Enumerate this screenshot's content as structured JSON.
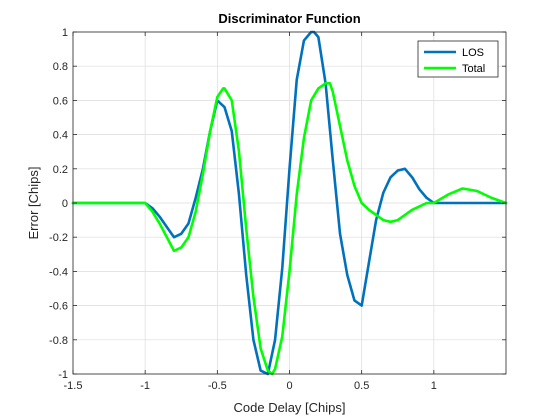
{
  "chart_data": {
    "type": "line",
    "title": "Discriminator Function",
    "xlabel": "Code Delay [Chips]",
    "ylabel": "Error [Chips]",
    "xlim": [
      -1.5,
      1.5
    ],
    "ylim": [
      -1,
      1
    ],
    "xticks": [
      -1.5,
      -1,
      -0.5,
      0,
      0.5,
      1
    ],
    "xtick_labels": [
      "-1.5",
      "-1",
      "-0.5",
      "0",
      "0.5",
      "1"
    ],
    "yticks": [
      -1,
      -0.8,
      -0.6,
      -0.4,
      -0.2,
      0,
      0.2,
      0.4,
      0.6,
      0.8,
      1
    ],
    "ytick_labels": [
      "-1",
      "-0.8",
      "-0.6",
      "-0.4",
      "-0.2",
      "0",
      "0.2",
      "0.4",
      "0.6",
      "0.8",
      "1"
    ],
    "grid": true,
    "legend_position": "top-right",
    "series": [
      {
        "name": "LOS",
        "color": "#0072bd",
        "x": [
          -1.5,
          -1.0,
          -0.95,
          -0.9,
          -0.85,
          -0.8,
          -0.75,
          -0.7,
          -0.65,
          -0.6,
          -0.55,
          -0.5,
          -0.45,
          -0.4,
          -0.35,
          -0.3,
          -0.25,
          -0.2,
          -0.15,
          -0.1,
          -0.05,
          0.0,
          0.05,
          0.1,
          0.15,
          0.17,
          0.2,
          0.25,
          0.3,
          0.35,
          0.4,
          0.45,
          0.5,
          0.55,
          0.6,
          0.65,
          0.7,
          0.75,
          0.8,
          0.85,
          0.9,
          0.95,
          1.0,
          1.5
        ],
        "y": [
          0,
          0,
          -0.03,
          -0.08,
          -0.14,
          -0.2,
          -0.18,
          -0.12,
          0.03,
          0.2,
          0.42,
          0.6,
          0.56,
          0.42,
          0.05,
          -0.42,
          -0.8,
          -0.98,
          -1.0,
          -0.8,
          -0.38,
          0.2,
          0.72,
          0.95,
          1.0,
          1.0,
          0.97,
          0.7,
          0.25,
          -0.18,
          -0.42,
          -0.57,
          -0.6,
          -0.35,
          -0.1,
          0.06,
          0.15,
          0.19,
          0.2,
          0.15,
          0.08,
          0.03,
          0,
          0
        ]
      },
      {
        "name": "Total",
        "color": "#00ff00",
        "x": [
          -1.5,
          -1.0,
          -0.95,
          -0.9,
          -0.85,
          -0.8,
          -0.75,
          -0.7,
          -0.65,
          -0.6,
          -0.55,
          -0.5,
          -0.46,
          -0.45,
          -0.4,
          -0.35,
          -0.3,
          -0.25,
          -0.2,
          -0.15,
          -0.12,
          -0.1,
          -0.05,
          0.0,
          0.05,
          0.1,
          0.15,
          0.2,
          0.25,
          0.28,
          0.3,
          0.35,
          0.4,
          0.45,
          0.5,
          0.55,
          0.6,
          0.65,
          0.7,
          0.75,
          0.8,
          0.85,
          0.9,
          0.95,
          1.0,
          1.1,
          1.2,
          1.3,
          1.4,
          1.5
        ],
        "y": [
          0,
          0,
          -0.05,
          -0.12,
          -0.2,
          -0.28,
          -0.26,
          -0.2,
          -0.05,
          0.17,
          0.42,
          0.62,
          0.67,
          0.67,
          0.6,
          0.3,
          -0.15,
          -0.55,
          -0.85,
          -0.98,
          -1.0,
          -0.97,
          -0.78,
          -0.4,
          0.05,
          0.38,
          0.6,
          0.67,
          0.7,
          0.7,
          0.65,
          0.45,
          0.25,
          0.1,
          0.0,
          -0.04,
          -0.07,
          -0.1,
          -0.11,
          -0.1,
          -0.07,
          -0.04,
          -0.02,
          0.0,
          0.0,
          0.05,
          0.085,
          0.07,
          0.03,
          0.0
        ]
      }
    ]
  }
}
